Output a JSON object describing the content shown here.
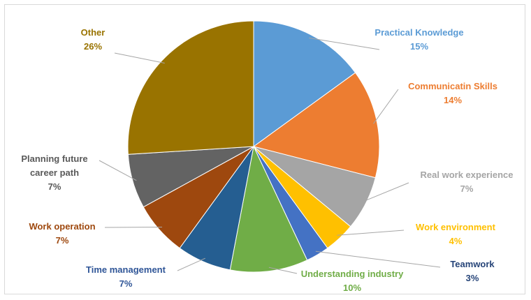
{
  "chart_data": {
    "type": "pie",
    "title": "",
    "slices": [
      {
        "label_lines": [
          "Practical Knowledge"
        ],
        "pct_label": "15%",
        "value": 15,
        "color": "#5b9bd5"
      },
      {
        "label_lines": [
          "Communicatin Skills"
        ],
        "pct_label": "14%",
        "value": 14,
        "color": "#ed7d31"
      },
      {
        "label_lines": [
          "Real work experience"
        ],
        "pct_label": "7%",
        "value": 7,
        "color": "#a5a5a5"
      },
      {
        "label_lines": [
          "Work environment"
        ],
        "pct_label": "4%",
        "value": 4,
        "color": "#ffc000"
      },
      {
        "label_lines": [
          "Teamwork"
        ],
        "pct_label": "3%",
        "value": 3,
        "color": "#4472c4"
      },
      {
        "label_lines": [
          "Understanding industry"
        ],
        "pct_label": "10%",
        "value": 10,
        "color": "#70ad47"
      },
      {
        "label_lines": [
          "Time management"
        ],
        "pct_label": "7%",
        "value": 7,
        "color": "#255e91"
      },
      {
        "label_lines": [
          "Work operation"
        ],
        "pct_label": "7%",
        "value": 7,
        "color": "#9e480e"
      },
      {
        "label_lines": [
          "Planning future",
          "career path"
        ],
        "pct_label": "7%",
        "value": 7,
        "color": "#636363"
      },
      {
        "label_lines": [
          "Other"
        ],
        "pct_label": "26%",
        "value": 26,
        "color": "#997300"
      }
    ],
    "label_colors": [
      "#5b9bd5",
      "#ed7d31",
      "#a5a5a5",
      "#ffc000",
      "#264478",
      "#70ad47",
      "#2f5597",
      "#9e480e",
      "#595959",
      "#997300"
    ],
    "legend": "none"
  }
}
